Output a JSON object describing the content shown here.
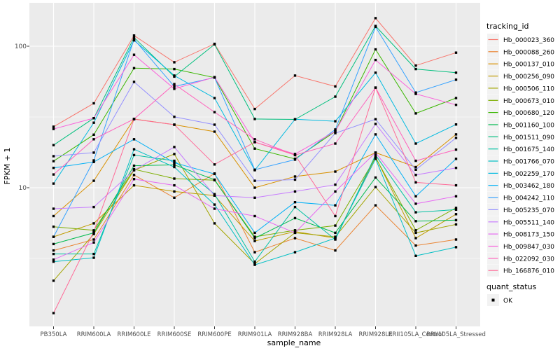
{
  "figure": {
    "background": "#FFFFFF",
    "panel_background": "#EBEBEB",
    "gridline_color": "#FFFFFF",
    "tick_label_color": "#4D4D4D",
    "axis_title_color": "#000000",
    "marker_color": "#000000"
  },
  "chart_data": {
    "type": "line",
    "title": "",
    "xlabel": "sample_name",
    "ylabel": "FPKM + 1",
    "y_scale": "log10",
    "ylim": [
      1.05,
      190
    ],
    "y_ticks": [
      100,
      10
    ],
    "y_tick_labels": [
      "100",
      "10"
    ],
    "y_grid_major": [
      10,
      100
    ],
    "y_grid_minor": [
      3.162,
      31.62
    ],
    "grid": true,
    "marker": "black-square",
    "categories": [
      "PB350LA",
      "RRIM600LA",
      "RRIM600LE",
      "RRIM600SE",
      "RRIM600PE",
      "RRIM901LA",
      "RRIM928BA",
      "RRIM928LA",
      "RRIM928LE",
      "RRII105LA_Control",
      "RRII105LA_Stressed"
    ],
    "legend": {
      "title": "tracking_id",
      "position": "right"
    },
    "legend2": {
      "title": "quant_status",
      "items": [
        {
          "label": "OK",
          "marker": "black-square"
        }
      ]
    },
    "series": [
      {
        "name": "Hb_000023_360",
        "color": "#F8766D",
        "values": [
          27,
          39.5,
          119,
          77,
          104,
          36,
          62,
          52,
          158,
          73,
          90
        ]
      },
      {
        "name": "Hb_000088_260",
        "color": "#EA8331",
        "values": [
          3.6,
          4.3,
          12.3,
          8.5,
          12.6,
          3.5,
          4.4,
          3.6,
          7.5,
          3.9,
          4.3
        ]
      },
      {
        "name": "Hb_000137_010",
        "color": "#D89000",
        "values": [
          6.3,
          11.2,
          30.6,
          27.9,
          24.9,
          10,
          12,
          13,
          17.7,
          14,
          23.8
        ]
      },
      {
        "name": "Hb_000256_090",
        "color": "#C09B00",
        "values": [
          4.5,
          5.6,
          10.4,
          9.4,
          8.8,
          4.2,
          4.9,
          4.4,
          16.5,
          4.4,
          6.5
        ]
      },
      {
        "name": "Hb_000506_110",
        "color": "#A3A500",
        "values": [
          2.2,
          4.7,
          13.3,
          17.3,
          5.6,
          2.9,
          4.8,
          4.5,
          10.1,
          4.8,
          5.5
        ]
      },
      {
        "name": "Hb_000673_010",
        "color": "#7CAE00",
        "values": [
          5.3,
          5.0,
          13.5,
          11.6,
          11.3,
          4.5,
          5.0,
          5.4,
          16.3,
          5.0,
          7.2
        ]
      },
      {
        "name": "Hb_000680_120",
        "color": "#39B600",
        "values": [
          15.4,
          23.7,
          70,
          69,
          60,
          18.9,
          16,
          25,
          95,
          33.5,
          43
        ]
      },
      {
        "name": "Hb_001160_100",
        "color": "#00BB4E",
        "values": [
          4.0,
          4.8,
          14.3,
          14.5,
          11.4,
          4.4,
          6.1,
          4.8,
          11.8,
          5.8,
          5.9
        ]
      },
      {
        "name": "Hb_001511_090",
        "color": "#00BF7D",
        "values": [
          20,
          31,
          115,
          61,
          103,
          30.6,
          30.4,
          44,
          139,
          69,
          65
        ]
      },
      {
        "name": "Hb_001675_140",
        "color": "#00C1A3",
        "values": [
          3.4,
          3.4,
          17,
          15.5,
          9.0,
          3.0,
          7.3,
          4.3,
          17,
          6.7,
          7.0
        ]
      },
      {
        "name": "Hb_001766_070",
        "color": "#00BFC4",
        "values": [
          3.0,
          3.2,
          18.7,
          14.0,
          7.6,
          2.85,
          3.5,
          4.4,
          16.0,
          3.3,
          3.8
        ]
      },
      {
        "name": "Hb_002259_170",
        "color": "#00BAE0",
        "values": [
          10.7,
          28.8,
          110,
          62,
          43,
          13.3,
          30.5,
          29.5,
          65,
          20.5,
          28
        ]
      },
      {
        "name": "Hb_003462_180",
        "color": "#00B0F6",
        "values": [
          13.8,
          15.2,
          22,
          15.0,
          12.5,
          4.8,
          7.9,
          7.5,
          23.8,
          8.7,
          16
        ]
      },
      {
        "name": "Hb_004242_110",
        "color": "#35A2FF",
        "values": [
          4.5,
          15.6,
          112,
          52,
          60,
          13.4,
          15.8,
          25.8,
          137,
          47,
          58
        ]
      },
      {
        "name": "Hb_005235_070",
        "color": "#9590FF",
        "values": [
          16.7,
          17.7,
          56,
          31.7,
          27.9,
          11.2,
          11.4,
          24.3,
          30.5,
          13.4,
          22.5
        ]
      },
      {
        "name": "Hb_005511_140",
        "color": "#C77CFF",
        "values": [
          7.1,
          7.3,
          13.3,
          19.4,
          8.8,
          8.5,
          9.4,
          10.5,
          28.2,
          12.3,
          13.8
        ]
      },
      {
        "name": "Hb_008173_150",
        "color": "#E76BF3",
        "values": [
          3.1,
          4.1,
          11.5,
          10.4,
          7.1,
          6.3,
          4.8,
          9.4,
          17.7,
          7.7,
          8.7
        ]
      },
      {
        "name": "Hb_009847_030",
        "color": "#FA62DB",
        "values": [
          26,
          31,
          87,
          50,
          60.5,
          21,
          17.3,
          25,
          80,
          46,
          38.5
        ]
      },
      {
        "name": "Hb_022092_030",
        "color": "#FF62BC",
        "values": [
          12.4,
          22,
          30.6,
          54,
          34.2,
          22,
          17,
          20.5,
          51,
          15.5,
          18.6
        ]
      },
      {
        "name": "Hb_166876_010",
        "color": "#FF6A98",
        "values": [
          1.3,
          4.9,
          30.5,
          27.9,
          14.6,
          21,
          17,
          6.3,
          51,
          10.9,
          10.4
        ]
      }
    ]
  }
}
